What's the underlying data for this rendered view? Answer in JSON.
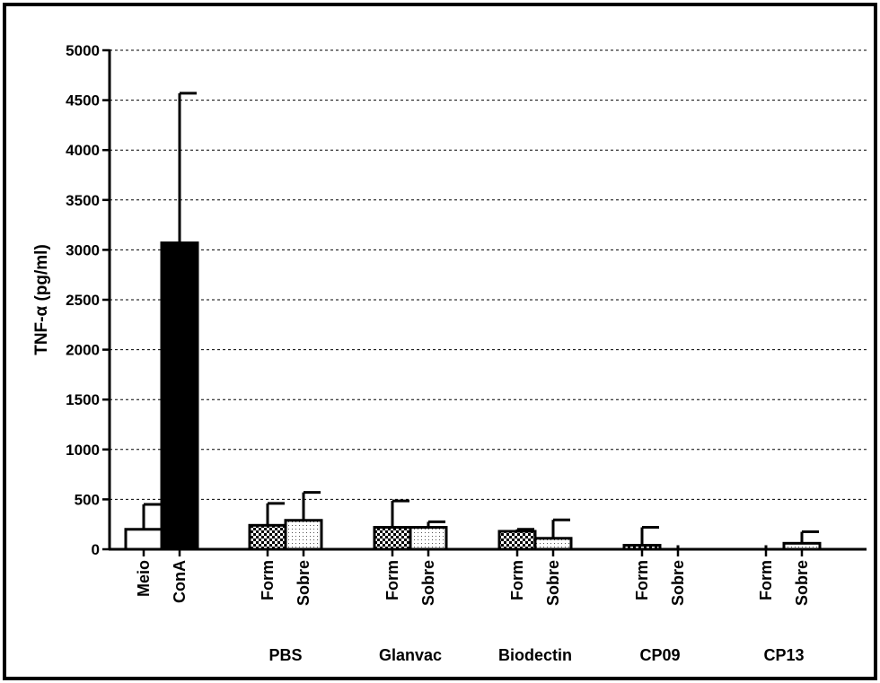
{
  "chart_data": {
    "type": "bar",
    "title": "",
    "xlabel": "",
    "ylabel": "TNF-α (pg/ml)",
    "ylim": [
      0,
      5000
    ],
    "yticks": [
      0,
      500,
      1000,
      1500,
      2000,
      2500,
      3000,
      3500,
      4000,
      4500,
      5000
    ],
    "grid": "horizontal-dashed",
    "controls": [
      {
        "label": "Meio",
        "value": 200,
        "error": 250,
        "fill": "white"
      },
      {
        "label": "ConA",
        "value": 3070,
        "error": 1500,
        "fill": "black"
      }
    ],
    "groups": [
      {
        "name": "PBS",
        "bars": [
          {
            "label": "Form",
            "value": 240,
            "error": 220,
            "fill": "crosshatch"
          },
          {
            "label": "Sobre",
            "value": 290,
            "error": 280,
            "fill": "dots"
          }
        ]
      },
      {
        "name": "Glanvac",
        "bars": [
          {
            "label": "Form",
            "value": 220,
            "error": 265,
            "fill": "crosshatch"
          },
          {
            "label": "Sobre",
            "value": 220,
            "error": 55,
            "fill": "dots"
          }
        ]
      },
      {
        "name": "Biodectin",
        "bars": [
          {
            "label": "Form",
            "value": 180,
            "error": 20,
            "fill": "crosshatch"
          },
          {
            "label": "Sobre",
            "value": 110,
            "error": 185,
            "fill": "dots"
          }
        ]
      },
      {
        "name": "CP09",
        "bars": [
          {
            "label": "Form",
            "value": 40,
            "error": 180,
            "fill": "crosshatch"
          },
          {
            "label": "Sobre",
            "value": 0,
            "error": 0,
            "fill": "dots"
          }
        ]
      },
      {
        "name": "CP13",
        "bars": [
          {
            "label": "Form",
            "value": 0,
            "error": 0,
            "fill": "crosshatch"
          },
          {
            "label": "Sobre",
            "value": 60,
            "error": 115,
            "fill": "dots"
          }
        ]
      }
    ]
  }
}
